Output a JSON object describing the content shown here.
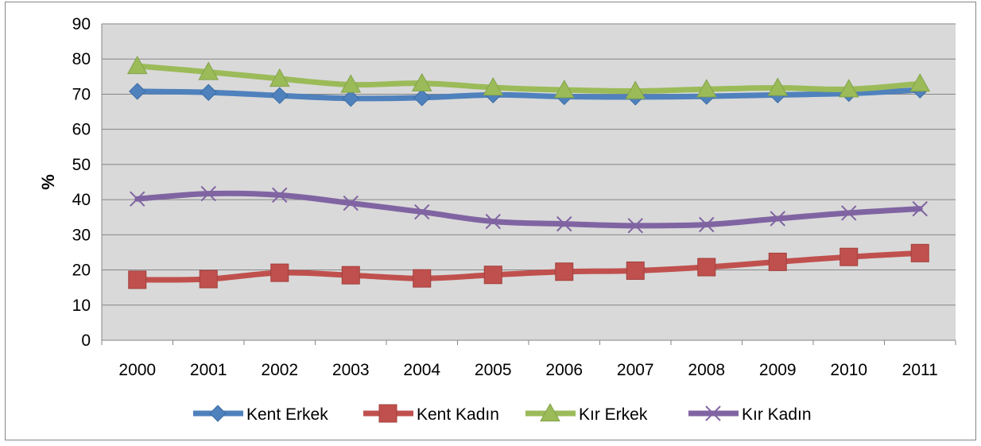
{
  "chart_data": {
    "type": "line",
    "title": "",
    "xlabel": "",
    "ylabel": "%",
    "ylim": [
      0,
      90
    ],
    "yticks": [
      0,
      10,
      20,
      30,
      40,
      50,
      60,
      70,
      80,
      90
    ],
    "categories": [
      "2000",
      "2001",
      "2002",
      "2003",
      "2004",
      "2005",
      "2006",
      "2007",
      "2008",
      "2009",
      "2010",
      "2011"
    ],
    "grid": true,
    "legend_position": "bottom",
    "series": [
      {
        "name": "Kent Erkek",
        "color": "#4f81bd",
        "marker": "diamond",
        "values": [
          70.8,
          70.5,
          69.6,
          68.8,
          69.0,
          69.8,
          69.3,
          69.2,
          69.4,
          69.8,
          70.2,
          71.2
        ]
      },
      {
        "name": "Kent Kadın",
        "color": "#c0504d",
        "marker": "square",
        "values": [
          17.2,
          17.4,
          19.2,
          18.5,
          17.6,
          18.6,
          19.5,
          19.8,
          20.8,
          22.3,
          23.7,
          24.8
        ]
      },
      {
        "name": "Kır Erkek",
        "color": "#9bbb59",
        "marker": "triangle",
        "values": [
          78.0,
          76.3,
          74.4,
          72.7,
          73.1,
          71.9,
          71.2,
          70.9,
          71.4,
          71.8,
          71.4,
          73.0
        ]
      },
      {
        "name": "Kır Kadın",
        "color": "#8064a2",
        "marker": "x",
        "values": [
          40.2,
          41.7,
          41.3,
          39.0,
          36.5,
          33.8,
          33.1,
          32.6,
          32.9,
          34.6,
          36.2,
          37.4
        ]
      }
    ]
  }
}
